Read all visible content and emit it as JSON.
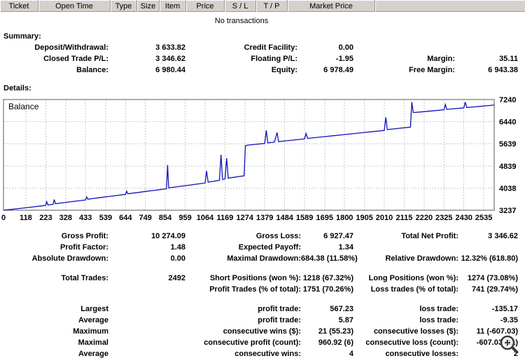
{
  "colors": {
    "header_bg": "#d5d1ca",
    "line": "#1111bb",
    "grid": "#c9c9c9",
    "background": "#ffffff"
  },
  "table": {
    "columns": [
      {
        "key": "ticket",
        "label": "Ticket",
        "width": 55
      },
      {
        "key": "open-time",
        "label": "Open Time",
        "width": 103
      },
      {
        "key": "type",
        "label": "Type",
        "width": 38
      },
      {
        "key": "size",
        "label": "Size",
        "width": 32
      },
      {
        "key": "item",
        "label": "Item",
        "width": 38
      },
      {
        "key": "price",
        "label": "Price",
        "width": 55
      },
      {
        "key": "sl",
        "label": "S / L",
        "width": 45
      },
      {
        "key": "tp",
        "label": "T / P",
        "width": 45
      },
      {
        "key": "market-price",
        "label": "Market Price",
        "width": 125
      }
    ]
  },
  "empty_message": "No transactions",
  "summary": {
    "title": "Summary:",
    "rows": [
      {
        "c1l": "Deposit/Withdrawal:",
        "c1v": "3 633.82",
        "c2l": "Credit Facility:",
        "c2v": "0.00",
        "c3l": "",
        "c3v": ""
      },
      {
        "c1l": "Closed Trade P/L:",
        "c1v": "3 346.62",
        "c2l": "Floating P/L:",
        "c2v": "-1.95",
        "c3l": "Margin:",
        "c3v": "35.11"
      },
      {
        "c1l": "Balance:",
        "c1v": "6 980.44",
        "c2l": "Equity:",
        "c2v": "6 978.49",
        "c3l": "Free Margin:",
        "c3v": "6 943.38"
      }
    ]
  },
  "details": {
    "title": "Details:",
    "groups": [
      [
        {
          "c1l": "Gross Profit:",
          "c1v": "10 274.09",
          "c2l": "Gross Loss:",
          "c2v": "6 927.47",
          "c3l": "Total Net Profit:",
          "c3v": "3 346.62"
        },
        {
          "c1l": "Profit Factor:",
          "c1v": "1.48",
          "c2l": "Expected Payoff:",
          "c2v": "1.34",
          "c3l": "",
          "c3v": ""
        },
        {
          "c1l": "Absolute Drawdown:",
          "c1v": "0.00",
          "c2l": "Maximal Drawdown:",
          "c2v": "684.38 (11.58%)",
          "c3l": "Relative Drawdown:",
          "c3v": "12.32% (618.80)"
        }
      ],
      [
        {
          "c1l": "Total Trades:",
          "c1v": "2492",
          "c2l": "Short Positions (won %):",
          "c2v": "1218 (67.32%)",
          "c3l": "Long Positions (won %):",
          "c3v": "1274 (73.08%)"
        },
        {
          "c1l": "",
          "c1v": "",
          "c2l": "Profit Trades (% of total):",
          "c2v": "1751 (70.26%)",
          "c3l": "Loss trades (% of total):",
          "c3v": "741 (29.74%)"
        }
      ],
      [
        {
          "c1l": "Largest",
          "c1v": "",
          "c2l": "profit trade:",
          "c2v": "567.23",
          "c3l": "loss trade:",
          "c3v": "-135.17"
        },
        {
          "c1l": "Average",
          "c1v": "",
          "c2l": "profit trade:",
          "c2v": "5.87",
          "c3l": "loss trade:",
          "c3v": "-9.35"
        },
        {
          "c1l": "Maximum",
          "c1v": "",
          "c2l": "consecutive wins ($):",
          "c2v": "21 (55.23)",
          "c3l": "consecutive losses ($):",
          "c3v": "11 (-607.03)"
        },
        {
          "c1l": "Maximal",
          "c1v": "",
          "c2l": "consecutive profit (count):",
          "c2v": "960.92 (6)",
          "c3l": "consecutive loss (count):",
          "c3v": "-607.03 (11)"
        },
        {
          "c1l": "Average",
          "c1v": "",
          "c2l": "consecutive wins:",
          "c2v": "4",
          "c3l": "consecutive losses:",
          "c3v": "2"
        }
      ]
    ]
  },
  "chart_data": {
    "type": "line",
    "title": "Balance",
    "xlabel": "",
    "ylabel": "",
    "xlim": [
      0,
      2590
    ],
    "ylim": [
      3237,
      7240
    ],
    "x_ticks": [
      0,
      118,
      223,
      328,
      433,
      539,
      644,
      749,
      854,
      959,
      1064,
      1169,
      1274,
      1379,
      1484,
      1589,
      1695,
      1800,
      1905,
      2010,
      2115,
      2220,
      2325,
      2430,
      2535
    ],
    "y_ticks": [
      3237,
      4038,
      4839,
      5639,
      6440,
      7240
    ],
    "grid": "dashed",
    "legend_position": "none",
    "series": [
      {
        "name": "Balance",
        "color": "#1111bb",
        "points": [
          [
            0,
            3237
          ],
          [
            40,
            3268
          ],
          [
            80,
            3298
          ],
          [
            118,
            3326
          ],
          [
            160,
            3360
          ],
          [
            200,
            3394
          ],
          [
            222,
            3412
          ],
          [
            228,
            3545
          ],
          [
            234,
            3428
          ],
          [
            262,
            3452
          ],
          [
            268,
            3625
          ],
          [
            274,
            3470
          ],
          [
            310,
            3502
          ],
          [
            328,
            3518
          ],
          [
            370,
            3555
          ],
          [
            410,
            3590
          ],
          [
            433,
            3610
          ],
          [
            439,
            3720
          ],
          [
            445,
            3635
          ],
          [
            470,
            3658
          ],
          [
            500,
            3685
          ],
          [
            539,
            3720
          ],
          [
            580,
            3755
          ],
          [
            620,
            3790
          ],
          [
            644,
            3810
          ],
          [
            650,
            3925
          ],
          [
            656,
            3832
          ],
          [
            690,
            3862
          ],
          [
            720,
            3888
          ],
          [
            749,
            3915
          ],
          [
            790,
            3950
          ],
          [
            820,
            3978
          ],
          [
            854,
            4008
          ],
          [
            860,
            4020
          ],
          [
            866,
            4870
          ],
          [
            872,
            4045
          ],
          [
            900,
            4070
          ],
          [
            930,
            4098
          ],
          [
            959,
            4125
          ],
          [
            1000,
            4162
          ],
          [
            1030,
            4190
          ],
          [
            1064,
            4222
          ],
          [
            1072,
            4660
          ],
          [
            1080,
            4252
          ],
          [
            1110,
            4285
          ],
          [
            1140,
            4318
          ],
          [
            1148,
            5240
          ],
          [
            1156,
            4352
          ],
          [
            1169,
            4368
          ],
          [
            1178,
            5120
          ],
          [
            1186,
            4395
          ],
          [
            1220,
            4432
          ],
          [
            1250,
            4462
          ],
          [
            1270,
            4482
          ],
          [
            1277,
            5570
          ],
          [
            1292,
            5592
          ],
          [
            1330,
            5618
          ],
          [
            1360,
            5640
          ],
          [
            1379,
            5652
          ],
          [
            1387,
            6125
          ],
          [
            1395,
            5672
          ],
          [
            1430,
            5700
          ],
          [
            1444,
            6045
          ],
          [
            1452,
            5718
          ],
          [
            1484,
            5742
          ],
          [
            1520,
            5768
          ],
          [
            1560,
            5795
          ],
          [
            1589,
            5815
          ],
          [
            1597,
            6015
          ],
          [
            1605,
            5832
          ],
          [
            1640,
            5858
          ],
          [
            1680,
            5888
          ],
          [
            1695,
            5898
          ],
          [
            1740,
            5930
          ],
          [
            1780,
            5958
          ],
          [
            1800,
            5972
          ],
          [
            1850,
            6008
          ],
          [
            1905,
            6048
          ],
          [
            1950,
            6080
          ],
          [
            2010,
            6122
          ],
          [
            2018,
            6595
          ],
          [
            2026,
            6152
          ],
          [
            2070,
            6185
          ],
          [
            2115,
            6218
          ],
          [
            2148,
            6242
          ],
          [
            2155,
            7145
          ],
          [
            2163,
            6768
          ],
          [
            2200,
            6790
          ],
          [
            2220,
            6802
          ],
          [
            2260,
            6828
          ],
          [
            2300,
            6852
          ],
          [
            2325,
            6868
          ],
          [
            2332,
            7055
          ],
          [
            2340,
            6882
          ],
          [
            2380,
            6908
          ],
          [
            2420,
            6932
          ],
          [
            2430,
            6938
          ],
          [
            2437,
            7150
          ],
          [
            2445,
            6952
          ],
          [
            2480,
            6972
          ],
          [
            2520,
            6995
          ],
          [
            2560,
            7022
          ],
          [
            2590,
            7040
          ]
        ]
      }
    ]
  },
  "icons": {
    "zoom": "magnifier-icon"
  }
}
